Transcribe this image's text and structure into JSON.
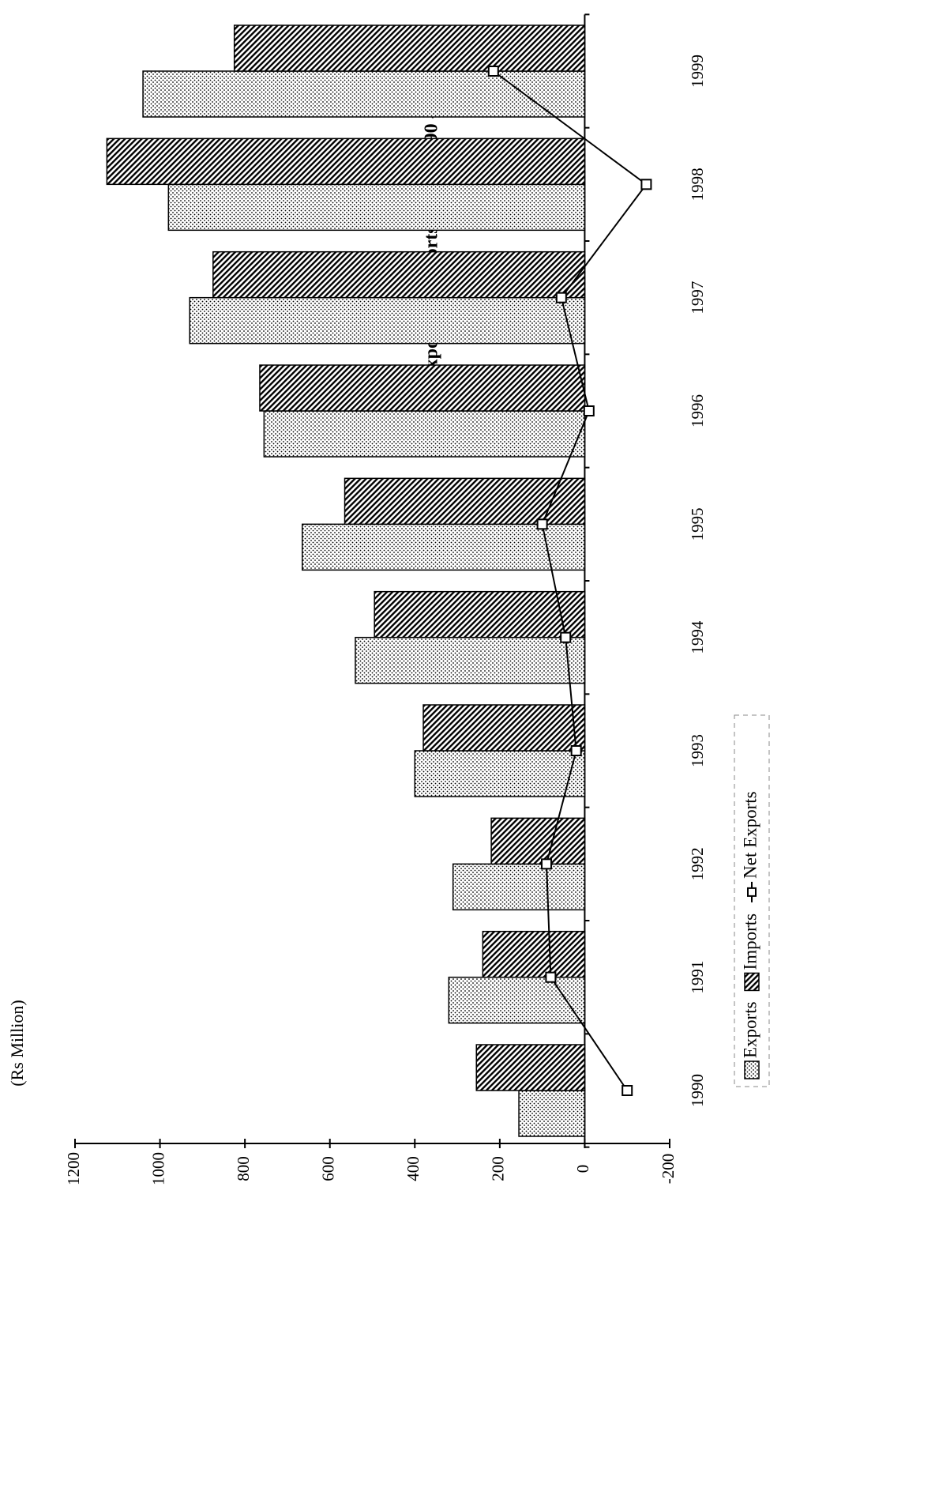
{
  "chart_data": {
    "type": "bar",
    "title": "Fig. 15 - Exports & Imports of Fish 1990 - 1999",
    "y_label": "(Rs Million)",
    "categories": [
      "1990",
      "1991",
      "1992",
      "1993",
      "1994",
      "1995",
      "1996",
      "1997",
      "1998",
      "1999"
    ],
    "series": [
      {
        "name": "Exports",
        "type": "bar",
        "pattern": "dots",
        "color": "#000000",
        "values": [
          155,
          320,
          310,
          400,
          540,
          665,
          755,
          930,
          980,
          1040
        ]
      },
      {
        "name": "Imports",
        "type": "bar",
        "pattern": "hatch",
        "color": "#000000",
        "values": [
          255,
          240,
          220,
          380,
          495,
          565,
          765,
          875,
          1125,
          825
        ]
      },
      {
        "name": "Net Exports",
        "type": "line",
        "color": "#000000",
        "values": [
          -100,
          80,
          90,
          20,
          45,
          100,
          -10,
          55,
          -145,
          215
        ]
      }
    ],
    "ylim": [
      -200,
      1200
    ],
    "yticks": [
      -200,
      0,
      200,
      400,
      600,
      800,
      1000,
      1200
    ],
    "legend": "bottom"
  }
}
